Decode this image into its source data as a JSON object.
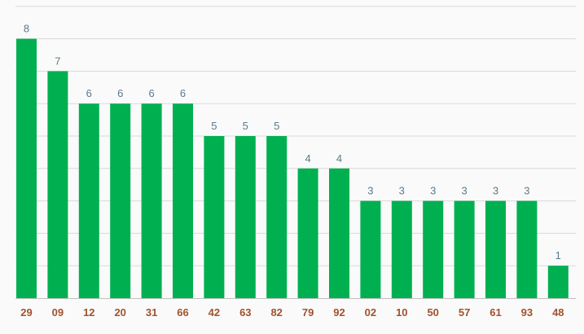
{
  "chart_data": {
    "type": "bar",
    "categories": [
      "29",
      "09",
      "12",
      "20",
      "31",
      "66",
      "42",
      "63",
      "82",
      "79",
      "92",
      "02",
      "10",
      "50",
      "57",
      "61",
      "93",
      "48"
    ],
    "values": [
      8,
      7,
      6,
      6,
      6,
      6,
      5,
      5,
      5,
      4,
      4,
      3,
      3,
      3,
      3,
      3,
      3,
      1
    ],
    "title": "",
    "xlabel": "",
    "ylabel": "",
    "ylim": [
      0,
      9
    ],
    "grid": true,
    "colors": {
      "bar": "#00b050",
      "value_label": "#5a7a8c",
      "category_label": "#a0522d",
      "grid": "#d9d9d9",
      "axis": "#bfbfbf"
    }
  }
}
